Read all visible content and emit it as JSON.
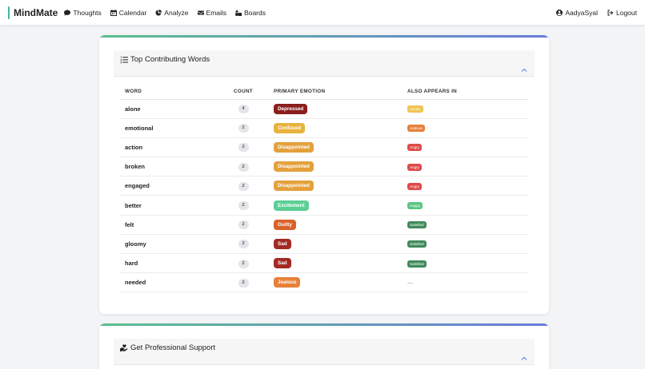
{
  "nav": {
    "brand": "MindMate",
    "items": [
      {
        "label": "Thoughts",
        "icon": "comment-icon"
      },
      {
        "label": "Calendar",
        "icon": "calendar-icon"
      },
      {
        "label": "Analyze",
        "icon": "pie-chart-icon"
      },
      {
        "label": "Emails",
        "icon": "envelope-icon"
      },
      {
        "label": "Boards",
        "icon": "shapes-icon"
      }
    ],
    "user": "AadyaSyal",
    "logout": "Logout"
  },
  "top_words": {
    "title": "Top Contributing Words",
    "columns": {
      "word": "WORD",
      "count": "COUNT",
      "primary": "PRIMARY EMOTION",
      "also": "ALSO APPEARS IN"
    },
    "rows": [
      {
        "word": "alone",
        "count": "4",
        "primary": "Depressed",
        "also": "Lonely"
      },
      {
        "word": "emotional",
        "count": "2",
        "primary": "Confused",
        "also": "Jealous"
      },
      {
        "word": "action",
        "count": "2",
        "primary": "Disappointed",
        "also": "Angry"
      },
      {
        "word": "broken",
        "count": "2",
        "primary": "Disappointed",
        "also": "Angry"
      },
      {
        "word": "engaged",
        "count": "2",
        "primary": "Disappointed",
        "also": "Angry"
      },
      {
        "word": "better",
        "count": "2",
        "primary": "Excitement",
        "also": "Happy"
      },
      {
        "word": "felt",
        "count": "2",
        "primary": "Guilty",
        "also": "Satisfied"
      },
      {
        "word": "gloomy",
        "count": "2",
        "primary": "Sad",
        "also": "Satisfied"
      },
      {
        "word": "hard",
        "count": "2",
        "primary": "Sad",
        "also": "Satisfied"
      },
      {
        "word": "needed",
        "count": "2",
        "primary": "Jealous",
        "also": "—"
      }
    ]
  },
  "emotion_colors": {
    "Depressed": "#8b1e1e",
    "Confused": "#e8b33d",
    "Disappointed": "#e4a03c",
    "Excitement": "#5ccf95",
    "Guilty": "#d8622a",
    "Sad": "#a22a25",
    "Jealous": "#e7813a",
    "Lonely": "#eec451",
    "Angry": "#df4a48",
    "Happy": "#5dc484",
    "Satisfied": "#3f8b5a"
  },
  "support": {
    "title": "Get Professional Support"
  }
}
